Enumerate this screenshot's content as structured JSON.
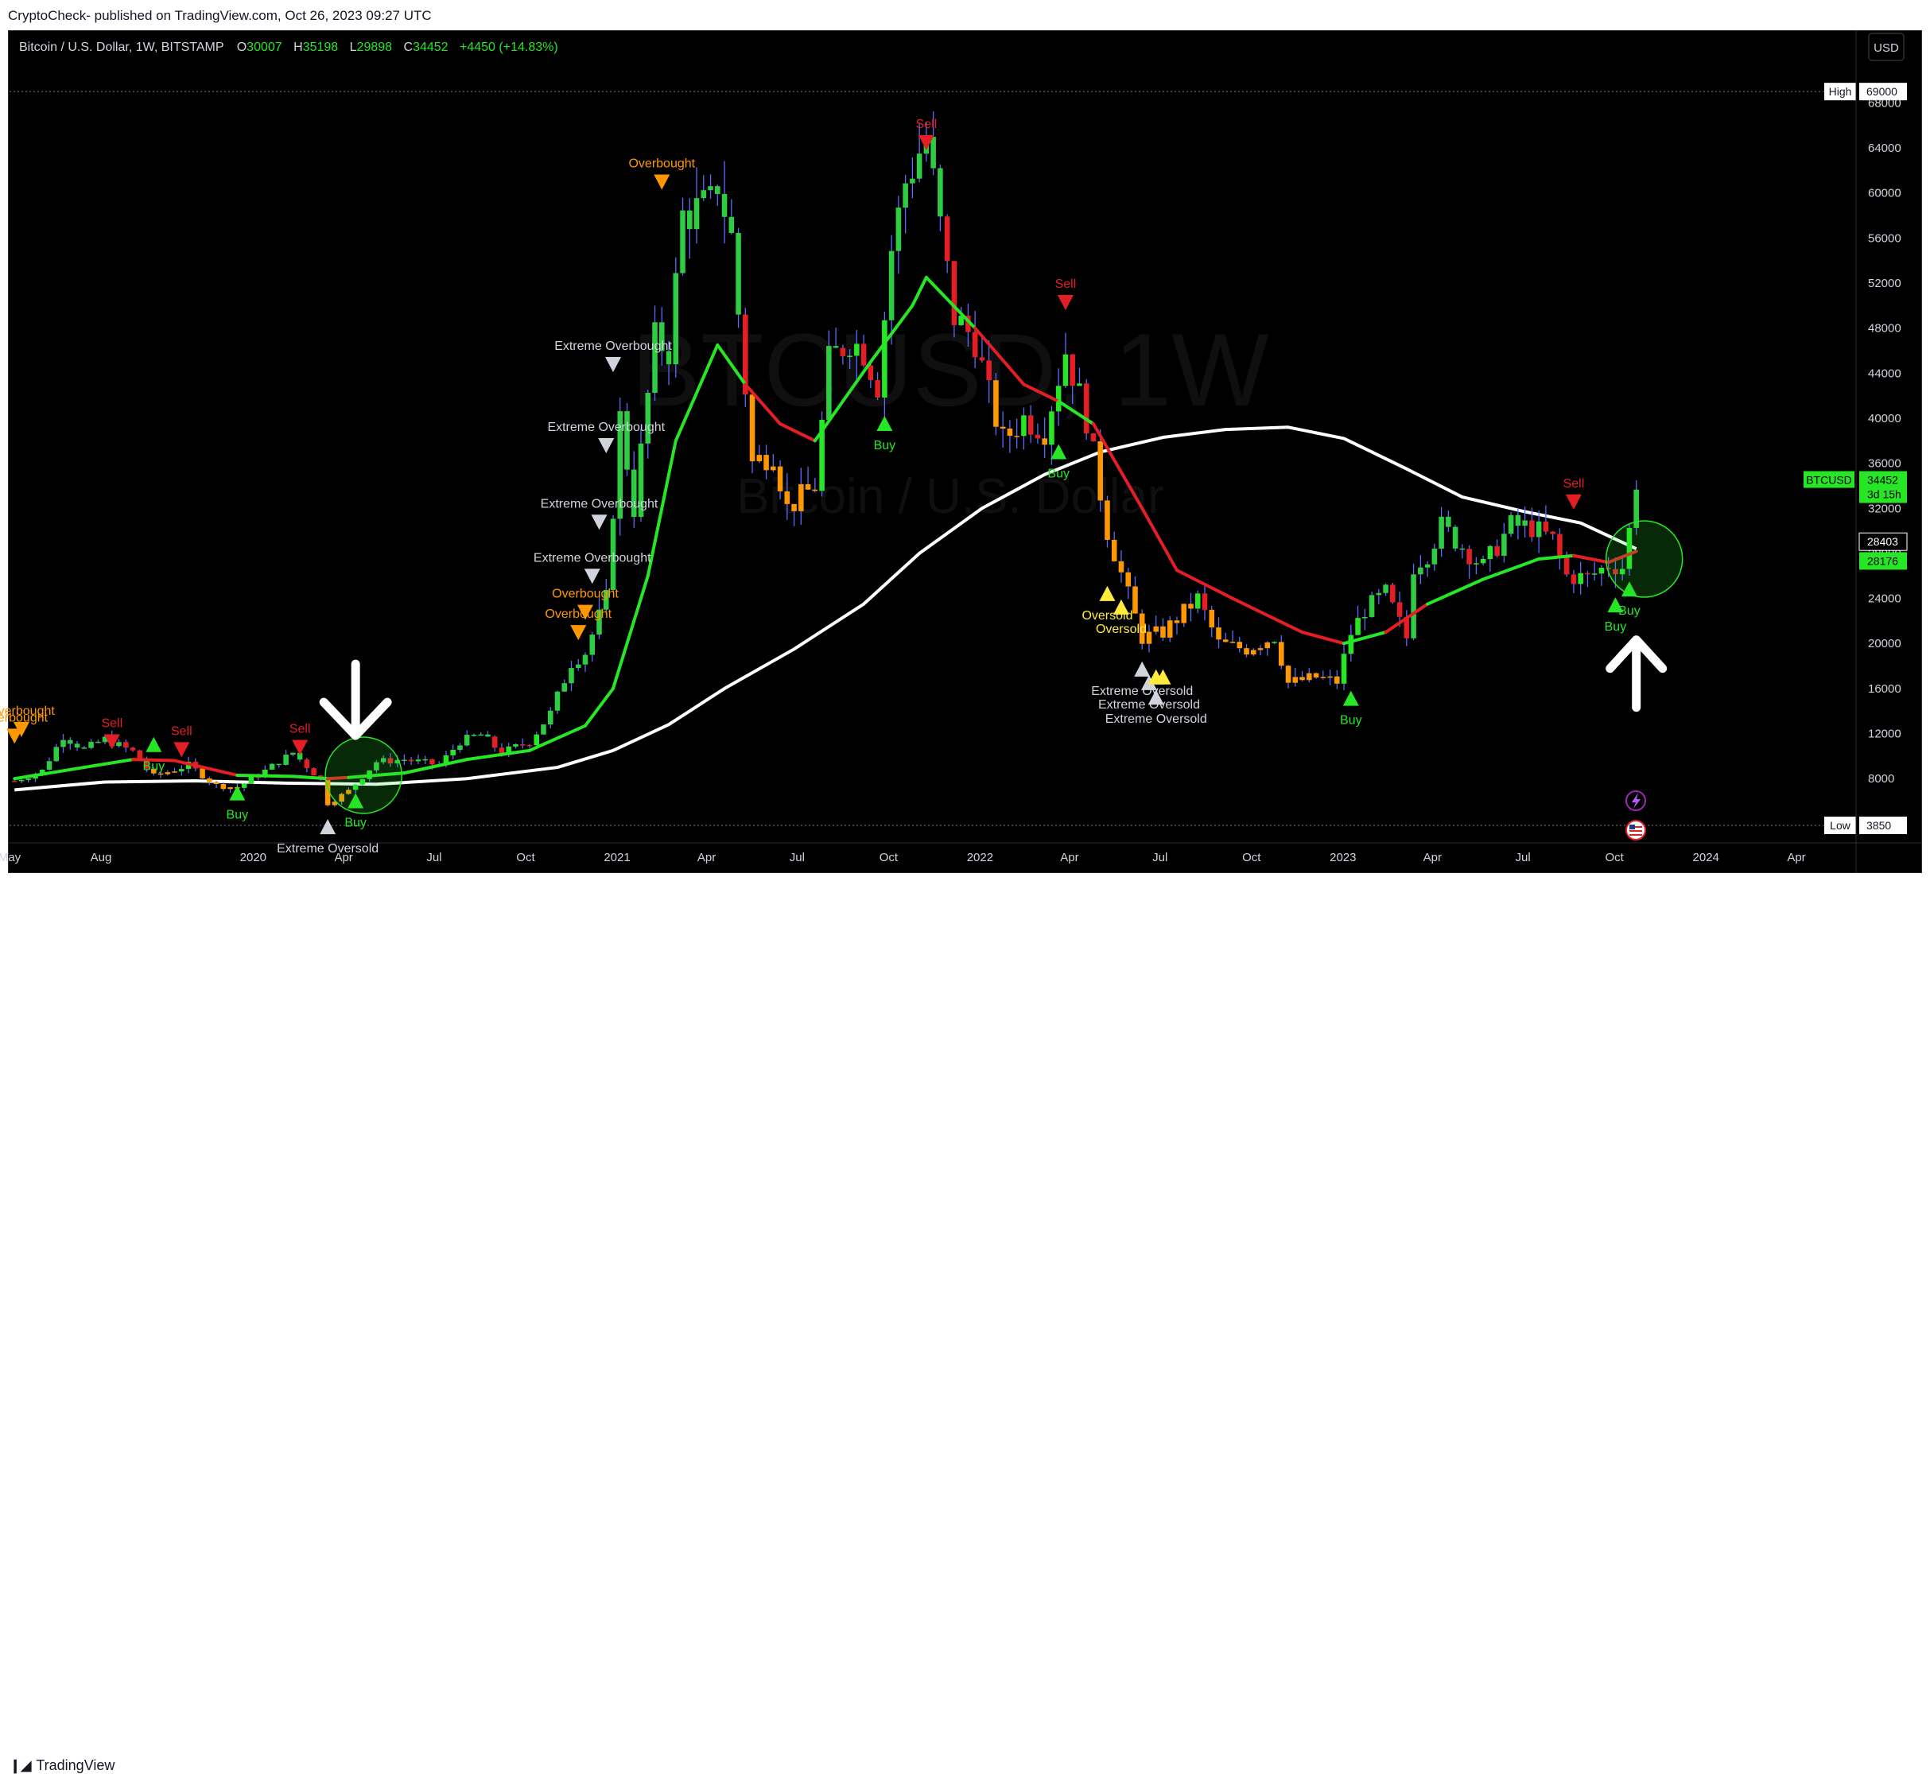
{
  "publish_line": "CryptoCheck- published on TradingView.com, Oct 26, 2023 09:27 UTC",
  "branding": {
    "logo_text": "TradingView"
  },
  "symbol_bar": {
    "title": "Bitcoin / U.S. Dollar, 1W, BITSTAMP",
    "o_label": "O",
    "o_value": "30007",
    "h_label": "H",
    "h_value": "35198",
    "l_label": "L",
    "l_value": "29898",
    "c_label": "C",
    "c_value": "34452",
    "change": "+4450 (+14.83%)"
  },
  "currency_button": "USD",
  "watermark": {
    "symbol": "BTCUSD, 1W",
    "name": "Bitcoin / U.S. Dollar"
  },
  "colors": {
    "up": "#26e626",
    "down": "#e31e24",
    "sma": "#ffffff",
    "overbought": "#ff9800",
    "oversold": "#ffeb3b",
    "extreme": "#d1d4dc"
  },
  "chart_data": {
    "type": "candlestick",
    "timeframe": "1W",
    "ylim": [
      3850,
      70000
    ],
    "y_ticks": [
      8000,
      12000,
      16000,
      20000,
      24000,
      28000,
      32000,
      36000,
      40000,
      44000,
      48000,
      52000,
      56000,
      60000,
      64000,
      68000
    ],
    "x_ticks": [
      "May",
      "Aug",
      "2020",
      "Apr",
      "Jul",
      "Oct",
      "2021",
      "Apr",
      "Jul",
      "Oct",
      "2022",
      "Apr",
      "Jul",
      "Oct",
      "2023",
      "Apr",
      "Jul",
      "Oct",
      "2024",
      "Apr"
    ],
    "x_tick_dates": [
      "2019-05-01",
      "2019-08-01",
      "2020-01-01",
      "2020-04-01",
      "2020-07-01",
      "2020-10-01",
      "2021-01-01",
      "2021-04-01",
      "2021-07-01",
      "2021-10-01",
      "2022-01-01",
      "2022-04-01",
      "2022-07-01",
      "2022-10-01",
      "2023-01-01",
      "2023-04-01",
      "2023-07-01",
      "2023-10-01",
      "2024-01-01",
      "2024-04-01"
    ],
    "price_markers": [
      {
        "label": "High",
        "value": 69000
      },
      {
        "label": "Low",
        "value": 3850
      }
    ],
    "price_tags": [
      {
        "text": "BTCUSD",
        "value": 34452,
        "sub": "3d 15h"
      },
      {
        "text": "",
        "value": 28403
      },
      {
        "text": "",
        "value": 28176
      }
    ],
    "close_series": [
      [
        "2019-05-06",
        7800
      ],
      [
        "2019-06-03",
        8700
      ],
      [
        "2019-06-24",
        11800
      ],
      [
        "2019-07-15",
        10600
      ],
      [
        "2019-08-05",
        11500
      ],
      [
        "2019-09-02",
        10400
      ],
      [
        "2019-09-23",
        8200
      ],
      [
        "2019-10-28",
        9200
      ],
      [
        "2019-11-25",
        7400
      ],
      [
        "2019-12-16",
        7200
      ],
      [
        "2020-01-13",
        8700
      ],
      [
        "2020-02-10",
        10300
      ],
      [
        "2020-03-09",
        7900
      ],
      [
        "2020-03-16",
        5800
      ],
      [
        "2020-04-06",
        6900
      ],
      [
        "2020-05-04",
        9500
      ],
      [
        "2020-06-01",
        9700
      ],
      [
        "2020-07-06",
        9200
      ],
      [
        "2020-07-27",
        11300
      ],
      [
        "2020-08-17",
        11900
      ],
      [
        "2020-09-07",
        10300
      ],
      [
        "2020-10-05",
        11300
      ],
      [
        "2020-10-26",
        13800
      ],
      [
        "2020-11-16",
        18300
      ],
      [
        "2020-11-30",
        19200
      ],
      [
        "2020-12-21",
        24000
      ],
      [
        "2021-01-04",
        40000
      ],
      [
        "2021-01-18",
        32000
      ],
      [
        "2021-02-08",
        47000
      ],
      [
        "2021-02-22",
        46000
      ],
      [
        "2021-03-08",
        58000
      ],
      [
        "2021-04-05",
        59000
      ],
      [
        "2021-04-12",
        61000
      ],
      [
        "2021-04-26",
        56000
      ],
      [
        "2021-05-17",
        36000
      ],
      [
        "2021-06-07",
        37000
      ],
      [
        "2021-06-21",
        32000
      ],
      [
        "2021-07-19",
        34000
      ],
      [
        "2021-08-02",
        45000
      ],
      [
        "2021-08-23",
        47000
      ],
      [
        "2021-09-06",
        46000
      ],
      [
        "2021-09-20",
        43000
      ],
      [
        "2021-10-04",
        55000
      ],
      [
        "2021-10-18",
        61000
      ],
      [
        "2021-11-08",
        65000
      ],
      [
        "2021-11-22",
        57000
      ],
      [
        "2021-12-06",
        49000
      ],
      [
        "2021-12-27",
        47000
      ],
      [
        "2022-01-10",
        42000
      ],
      [
        "2022-01-24",
        38000
      ],
      [
        "2022-02-14",
        40000
      ],
      [
        "2022-03-07",
        39000
      ],
      [
        "2022-03-28",
        46000
      ],
      [
        "2022-04-18",
        40000
      ],
      [
        "2022-05-09",
        30000
      ],
      [
        "2022-06-13",
        20500
      ],
      [
        "2022-07-04",
        21000
      ],
      [
        "2022-08-08",
        24000
      ],
      [
        "2022-08-29",
        20000
      ],
      [
        "2022-09-26",
        19500
      ],
      [
        "2022-10-24",
        20600
      ],
      [
        "2022-11-07",
        16500
      ],
      [
        "2022-12-05",
        17000
      ],
      [
        "2022-12-26",
        16600
      ],
      [
        "2023-01-09",
        20900
      ],
      [
        "2023-01-23",
        23000
      ],
      [
        "2023-02-13",
        24500
      ],
      [
        "2023-03-06",
        20500
      ],
      [
        "2023-03-13",
        26900
      ],
      [
        "2023-03-27",
        28000
      ],
      [
        "2023-04-10",
        30400
      ],
      [
        "2023-04-24",
        29200
      ],
      [
        "2023-05-22",
        26800
      ],
      [
        "2023-06-19",
        30500
      ],
      [
        "2023-07-10",
        30300
      ],
      [
        "2023-07-31",
        29200
      ],
      [
        "2023-08-14",
        26000
      ],
      [
        "2023-09-04",
        25800
      ],
      [
        "2023-09-25",
        27000
      ],
      [
        "2023-10-09",
        26800
      ],
      [
        "2023-10-16",
        30000
      ],
      [
        "2023-10-23",
        34452
      ]
    ],
    "sma_series": [
      [
        "2019-05-06",
        7000
      ],
      [
        "2019-08-05",
        7700
      ],
      [
        "2019-11-04",
        7800
      ],
      [
        "2020-02-03",
        7600
      ],
      [
        "2020-05-04",
        7500
      ],
      [
        "2020-08-03",
        8000
      ],
      [
        "2020-11-02",
        9000
      ],
      [
        "2020-12-28",
        10500
      ],
      [
        "2021-02-22",
        12800
      ],
      [
        "2021-04-19",
        16000
      ],
      [
        "2021-06-28",
        19500
      ],
      [
        "2021-09-06",
        23500
      ],
      [
        "2021-11-01",
        28000
      ],
      [
        "2022-01-03",
        32000
      ],
      [
        "2022-03-07",
        35000
      ],
      [
        "2022-05-02",
        37000
      ],
      [
        "2022-07-04",
        38300
      ],
      [
        "2022-09-05",
        39000
      ],
      [
        "2022-11-07",
        39200
      ],
      [
        "2023-01-02",
        38200
      ],
      [
        "2023-03-06",
        35500
      ],
      [
        "2023-05-01",
        33000
      ],
      [
        "2023-07-03",
        31700
      ],
      [
        "2023-08-28",
        30700
      ],
      [
        "2023-10-23",
        28403
      ]
    ],
    "signal_ema_series": [
      [
        "2019-05-06",
        8000
      ],
      [
        "2019-07-15",
        9000
      ],
      [
        "2019-09-02",
        9700
      ],
      [
        "2019-10-14",
        9600
      ],
      [
        "2019-12-16",
        8300
      ],
      [
        "2020-02-10",
        8200
      ],
      [
        "2020-03-16",
        8000
      ],
      [
        "2020-04-06",
        8100
      ],
      [
        "2020-06-01",
        8500
      ],
      [
        "2020-08-03",
        9700
      ],
      [
        "2020-10-05",
        10500
      ],
      [
        "2020-11-30",
        12700
      ],
      [
        "2020-12-28",
        16000
      ],
      [
        "2021-02-01",
        26000
      ],
      [
        "2021-03-01",
        38000
      ],
      [
        "2021-04-12",
        46500
      ],
      [
        "2021-05-10",
        43000
      ],
      [
        "2021-06-14",
        39500
      ],
      [
        "2021-07-19",
        38000
      ],
      [
        "2021-09-13",
        45000
      ],
      [
        "2021-10-25",
        50000
      ],
      [
        "2021-11-08",
        52500
      ],
      [
        "2021-12-27",
        48000
      ],
      [
        "2022-02-14",
        43000
      ],
      [
        "2022-03-21",
        41500
      ],
      [
        "2022-04-25",
        39500
      ],
      [
        "2022-06-13",
        32000
      ],
      [
        "2022-07-18",
        26500
      ],
      [
        "2022-09-12",
        24000
      ],
      [
        "2022-11-21",
        21000
      ],
      [
        "2023-01-02",
        20000
      ],
      [
        "2023-02-13",
        21000
      ],
      [
        "2023-03-27",
        23500
      ],
      [
        "2023-05-22",
        25700
      ],
      [
        "2023-07-17",
        27500
      ],
      [
        "2023-08-21",
        27800
      ],
      [
        "2023-09-25",
        27200
      ],
      [
        "2023-10-23",
        28176
      ]
    ],
    "signals": [
      {
        "date": "2019-05-06",
        "value": 11800,
        "text": "Overbought",
        "kind": "overbought"
      },
      {
        "date": "2019-05-13",
        "value": 12400,
        "text": "Overbought",
        "kind": "overbought"
      },
      {
        "date": "2019-08-12",
        "value": 11300,
        "text": "Sell",
        "kind": "sell"
      },
      {
        "date": "2019-09-23",
        "value": 11000,
        "text": "Buy",
        "kind": "buy"
      },
      {
        "date": "2019-10-21",
        "value": 10600,
        "text": "Sell",
        "kind": "sell"
      },
      {
        "date": "2019-12-16",
        "value": 6700,
        "text": "Buy",
        "kind": "buy"
      },
      {
        "date": "2020-02-17",
        "value": 10800,
        "text": "Sell",
        "kind": "sell"
      },
      {
        "date": "2020-03-16",
        "value": 3700,
        "text": "Extreme Oversold",
        "kind": "extreme"
      },
      {
        "date": "2020-04-13",
        "value": 6000,
        "text": "Buy",
        "kind": "buy"
      },
      {
        "date": "2020-11-23",
        "value": 21000,
        "text": "Overbought",
        "kind": "overbought"
      },
      {
        "date": "2020-11-30",
        "value": 22800,
        "text": "Overbought",
        "kind": "overbought"
      },
      {
        "date": "2020-12-07",
        "value": 26000,
        "text": "Extreme Overbought",
        "kind": "extreme"
      },
      {
        "date": "2020-12-14",
        "value": 30800,
        "text": "Extreme Overbought",
        "kind": "extreme"
      },
      {
        "date": "2020-12-21",
        "value": 37600,
        "text": "Extreme Overbought",
        "kind": "extreme"
      },
      {
        "date": "2020-12-28",
        "value": 44800,
        "text": "Extreme Overbought",
        "kind": "extreme"
      },
      {
        "date": "2021-02-15",
        "value": 61000,
        "text": "Overbought",
        "kind": "overbought"
      },
      {
        "date": "2021-09-27",
        "value": 39500,
        "text": "Buy",
        "kind": "buy"
      },
      {
        "date": "2021-11-08",
        "value": 64500,
        "text": "Sell",
        "kind": "sell"
      },
      {
        "date": "2022-03-21",
        "value": 37000,
        "text": "Buy",
        "kind": "buy"
      },
      {
        "date": "2022-03-28",
        "value": 50300,
        "text": "Sell",
        "kind": "sell"
      },
      {
        "date": "2022-05-09",
        "value": 24400,
        "text": "Oversold",
        "kind": "oversold"
      },
      {
        "date": "2022-05-23",
        "value": 23200,
        "text": "Oversold",
        "kind": "oversold"
      },
      {
        "date": "2022-06-13",
        "value": 17700,
        "text": "Extreme Oversold",
        "kind": "extreme"
      },
      {
        "date": "2022-06-20",
        "value": 16500,
        "text": "Extreme Oversold",
        "kind": "extreme"
      },
      {
        "date": "2022-06-27",
        "value": 15200,
        "text": "Extreme Oversold",
        "kind": "extreme"
      },
      {
        "date": "2022-06-27",
        "value": 17000,
        "text": "",
        "kind": "oversold"
      },
      {
        "date": "2022-07-04",
        "value": 17000,
        "text": "",
        "kind": "oversold"
      },
      {
        "date": "2023-01-09",
        "value": 15100,
        "text": "Buy",
        "kind": "buy"
      },
      {
        "date": "2023-08-21",
        "value": 32600,
        "text": "Sell",
        "kind": "sell"
      },
      {
        "date": "2023-10-02",
        "value": 23400,
        "text": "Buy",
        "kind": "buy"
      },
      {
        "date": "2023-10-16",
        "value": 24800,
        "text": "Buy",
        "kind": "buy"
      }
    ],
    "annotations": [
      {
        "kind": "circle",
        "date": "2020-04-13",
        "value": 8300
      },
      {
        "kind": "circle",
        "date": "2023-10-23",
        "value": 27500
      },
      {
        "kind": "arrow-down",
        "date": "2020-04-13",
        "value": 15000
      },
      {
        "kind": "arrow-up",
        "date": "2023-10-23",
        "value": 17500
      }
    ]
  }
}
